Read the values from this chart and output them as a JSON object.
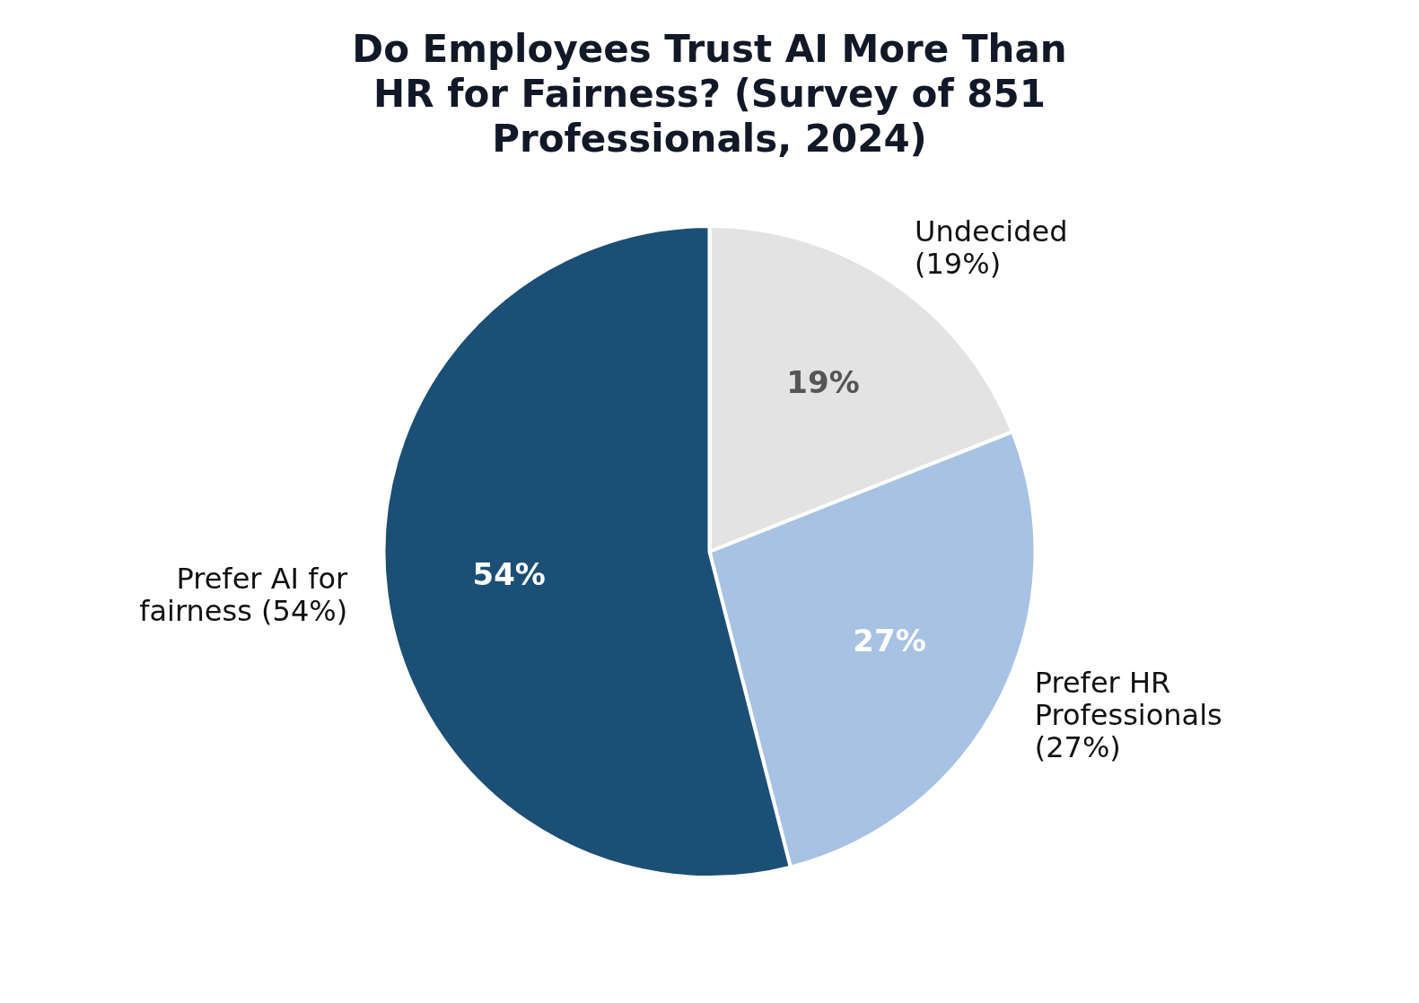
{
  "chart_data": {
    "type": "pie",
    "title": "Do Employees Trust AI More Than HR for Fairness? (Survey of 851 Professionals, 2024)",
    "categories": [
      "Undecided (19%)",
      "Prefer HR Professionals (27%)",
      "Prefer AI for fairness (54%)"
    ],
    "values": [
      19,
      27,
      54
    ],
    "value_labels": [
      "19%",
      "27%",
      "54%"
    ],
    "colors": [
      "#e3e3e3",
      "#a7c2e3",
      "#1b4f76"
    ],
    "legend": false
  }
}
